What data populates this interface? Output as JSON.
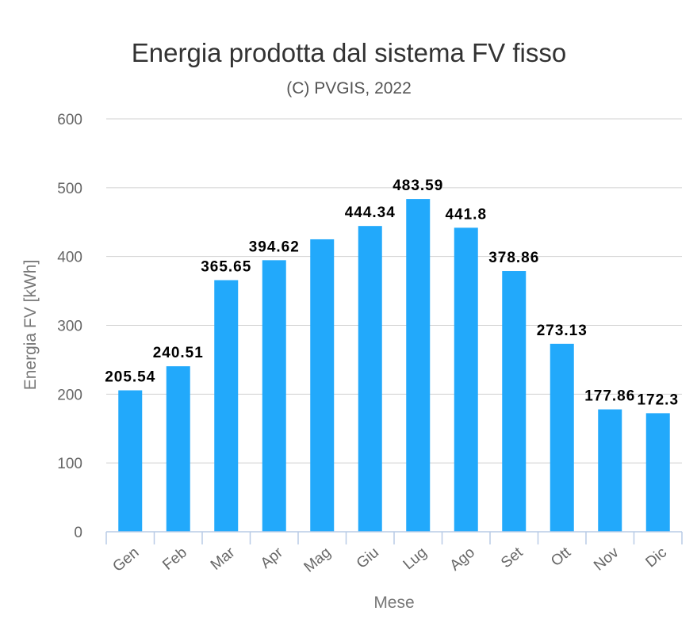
{
  "chart_data": {
    "type": "bar",
    "title": "Energia prodotta dal sistema FV fisso",
    "subtitle": "(C) PVGIS, 2022",
    "xlabel": "Mese",
    "ylabel": "Energia FV [kWh]",
    "categories": [
      "Gen",
      "Feb",
      "Mar",
      "Apr",
      "Mag",
      "Giu",
      "Lug",
      "Ago",
      "Set",
      "Ott",
      "Nov",
      "Dic"
    ],
    "values": [
      205.54,
      240.51,
      365.65,
      394.62,
      425,
      444.34,
      483.59,
      441.8,
      378.86,
      273.13,
      177.86,
      172.3
    ],
    "value_labels": [
      "205.54",
      "240.51",
      "365.65",
      "394.62",
      "",
      "444.34",
      "483.59",
      "441.8",
      "378.86",
      "273.13",
      "177.86",
      "172.3"
    ],
    "ylim": [
      0,
      600
    ],
    "yticks": [
      0,
      100,
      200,
      300,
      400,
      500,
      600
    ],
    "grid": true,
    "legend": "none",
    "bar_color": "#22a9fb",
    "grid_color": "#d0d0d0",
    "axis_color": "#b8cbe6"
  }
}
